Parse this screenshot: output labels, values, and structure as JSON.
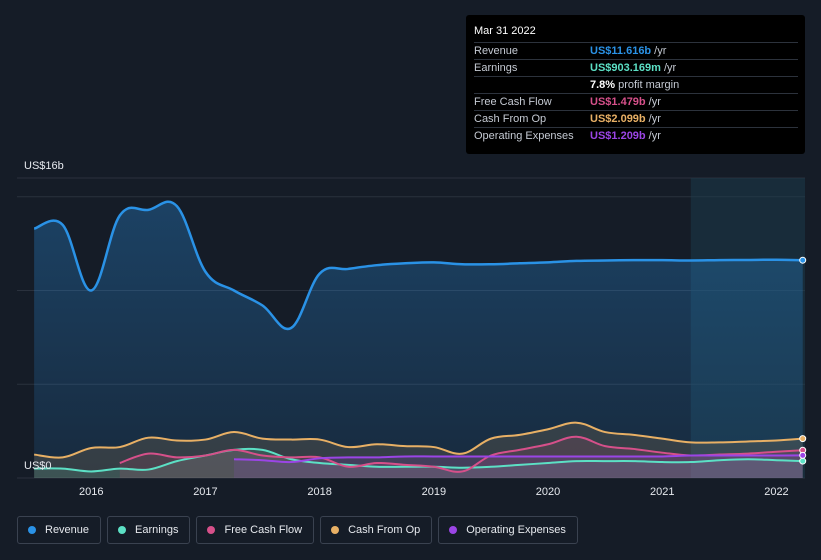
{
  "chart_data": {
    "type": "line",
    "y_axis_top_label": "US$16b",
    "y_axis_zero_label": "US$0",
    "ylim": [
      0,
      16
    ],
    "x_ticks": [
      "2016",
      "2017",
      "2018",
      "2019",
      "2020",
      "2021",
      "2022"
    ],
    "series": [
      {
        "name": "Revenue",
        "color": "#2a92e6",
        "area": true,
        "points": [
          [
            2015.5,
            13.3
          ],
          [
            2015.75,
            13.5
          ],
          [
            2016.0,
            10.0
          ],
          [
            2016.25,
            14.0
          ],
          [
            2016.5,
            14.3
          ],
          [
            2016.75,
            14.5
          ],
          [
            2017.0,
            11.0
          ],
          [
            2017.25,
            10.0
          ],
          [
            2017.5,
            9.2
          ],
          [
            2017.75,
            8.0
          ],
          [
            2018.0,
            10.9
          ],
          [
            2018.25,
            11.15
          ],
          [
            2018.5,
            11.35
          ],
          [
            2018.75,
            11.45
          ],
          [
            2019.0,
            11.5
          ],
          [
            2019.25,
            11.4
          ],
          [
            2019.5,
            11.4
          ],
          [
            2019.75,
            11.45
          ],
          [
            2020.0,
            11.5
          ],
          [
            2020.25,
            11.58
          ],
          [
            2020.5,
            11.6
          ],
          [
            2020.75,
            11.62
          ],
          [
            2021.0,
            11.62
          ],
          [
            2021.25,
            11.6
          ],
          [
            2021.5,
            11.62
          ],
          [
            2021.75,
            11.63
          ],
          [
            2022.0,
            11.64
          ],
          [
            2022.23,
            11.616
          ]
        ]
      },
      {
        "name": "Earnings",
        "color": "#5ce0c5",
        "area": true,
        "points": [
          [
            2015.5,
            0.5
          ],
          [
            2015.75,
            0.5
          ],
          [
            2016.0,
            0.35
          ],
          [
            2016.25,
            0.5
          ],
          [
            2016.5,
            0.45
          ],
          [
            2016.75,
            0.9
          ],
          [
            2017.0,
            1.2
          ],
          [
            2017.25,
            1.5
          ],
          [
            2017.5,
            1.5
          ],
          [
            2017.75,
            1.0
          ],
          [
            2018.0,
            0.8
          ],
          [
            2018.25,
            0.7
          ],
          [
            2018.5,
            0.6
          ],
          [
            2018.75,
            0.6
          ],
          [
            2019.0,
            0.6
          ],
          [
            2019.25,
            0.55
          ],
          [
            2019.5,
            0.6
          ],
          [
            2019.75,
            0.7
          ],
          [
            2020.0,
            0.8
          ],
          [
            2020.25,
            0.9
          ],
          [
            2020.5,
            0.9
          ],
          [
            2020.75,
            0.9
          ],
          [
            2021.0,
            0.85
          ],
          [
            2021.25,
            0.85
          ],
          [
            2021.5,
            0.95
          ],
          [
            2021.75,
            1.0
          ],
          [
            2022.0,
            0.95
          ],
          [
            2022.23,
            0.903
          ]
        ]
      },
      {
        "name": "Free Cash Flow",
        "color": "#d6508a",
        "area": true,
        "points": [
          [
            2016.25,
            0.8
          ],
          [
            2016.5,
            1.3
          ],
          [
            2016.75,
            1.1
          ],
          [
            2017.0,
            1.2
          ],
          [
            2017.25,
            1.5
          ],
          [
            2017.5,
            1.2
          ],
          [
            2017.75,
            1.1
          ],
          [
            2018.0,
            1.1
          ],
          [
            2018.25,
            0.6
          ],
          [
            2018.5,
            0.8
          ],
          [
            2018.75,
            0.7
          ],
          [
            2019.0,
            0.6
          ],
          [
            2019.25,
            0.35
          ],
          [
            2019.5,
            1.2
          ],
          [
            2019.75,
            1.5
          ],
          [
            2020.0,
            1.8
          ],
          [
            2020.25,
            2.2
          ],
          [
            2020.5,
            1.7
          ],
          [
            2020.75,
            1.55
          ],
          [
            2021.0,
            1.35
          ],
          [
            2021.25,
            1.2
          ],
          [
            2021.5,
            1.25
          ],
          [
            2021.75,
            1.3
          ],
          [
            2022.0,
            1.4
          ],
          [
            2022.23,
            1.479
          ]
        ]
      },
      {
        "name": "Cash From Op",
        "color": "#e8b065",
        "area": true,
        "points": [
          [
            2015.5,
            1.25
          ],
          [
            2015.75,
            1.1
          ],
          [
            2016.0,
            1.6
          ],
          [
            2016.25,
            1.65
          ],
          [
            2016.5,
            2.15
          ],
          [
            2016.75,
            2.0
          ],
          [
            2017.0,
            2.05
          ],
          [
            2017.25,
            2.45
          ],
          [
            2017.5,
            2.1
          ],
          [
            2017.75,
            2.05
          ],
          [
            2018.0,
            2.05
          ],
          [
            2018.25,
            1.65
          ],
          [
            2018.5,
            1.8
          ],
          [
            2018.75,
            1.7
          ],
          [
            2019.0,
            1.65
          ],
          [
            2019.25,
            1.3
          ],
          [
            2019.5,
            2.1
          ],
          [
            2019.75,
            2.3
          ],
          [
            2020.0,
            2.6
          ],
          [
            2020.25,
            2.95
          ],
          [
            2020.5,
            2.45
          ],
          [
            2020.75,
            2.3
          ],
          [
            2021.0,
            2.1
          ],
          [
            2021.25,
            1.9
          ],
          [
            2021.5,
            1.9
          ],
          [
            2021.75,
            1.95
          ],
          [
            2022.0,
            2.0
          ],
          [
            2022.23,
            2.099
          ]
        ]
      },
      {
        "name": "Operating Expenses",
        "color": "#9b45e6",
        "area": true,
        "points": [
          [
            2017.25,
            1.0
          ],
          [
            2017.5,
            0.95
          ],
          [
            2017.75,
            0.85
          ],
          [
            2018.0,
            1.05
          ],
          [
            2018.25,
            1.1
          ],
          [
            2018.5,
            1.1
          ],
          [
            2018.75,
            1.15
          ],
          [
            2019.0,
            1.15
          ],
          [
            2019.25,
            1.15
          ],
          [
            2019.5,
            1.15
          ],
          [
            2019.75,
            1.15
          ],
          [
            2020.0,
            1.15
          ],
          [
            2020.25,
            1.15
          ],
          [
            2020.5,
            1.15
          ],
          [
            2020.75,
            1.15
          ],
          [
            2021.0,
            1.15
          ],
          [
            2021.25,
            1.2
          ],
          [
            2021.5,
            1.2
          ],
          [
            2021.75,
            1.2
          ],
          [
            2022.0,
            1.2
          ],
          [
            2022.23,
            1.209
          ]
        ]
      }
    ]
  },
  "tooltip": {
    "date": "Mar 31 2022",
    "rows": [
      {
        "label": "Revenue",
        "value": "US$11.616b",
        "unit": "/yr",
        "color": "#2a92e6"
      },
      {
        "label": "Earnings",
        "value": "US$903.169m",
        "unit": "/yr",
        "color": "#5ce0c5"
      },
      {
        "label": "",
        "value": "7.8%",
        "unit": "profit margin",
        "color": "#ffffff"
      },
      {
        "label": "Free Cash Flow",
        "value": "US$1.479b",
        "unit": "/yr",
        "color": "#d6508a"
      },
      {
        "label": "Cash From Op",
        "value": "US$2.099b",
        "unit": "/yr",
        "color": "#e8b065"
      },
      {
        "label": "Operating Expenses",
        "value": "US$1.209b",
        "unit": "/yr",
        "color": "#9b45e6"
      }
    ]
  },
  "legend": [
    {
      "label": "Revenue",
      "color": "#2a92e6"
    },
    {
      "label": "Earnings",
      "color": "#5ce0c5"
    },
    {
      "label": "Free Cash Flow",
      "color": "#d6508a"
    },
    {
      "label": "Cash From Op",
      "color": "#e8b065"
    },
    {
      "label": "Operating Expenses",
      "color": "#9b45e6"
    }
  ]
}
